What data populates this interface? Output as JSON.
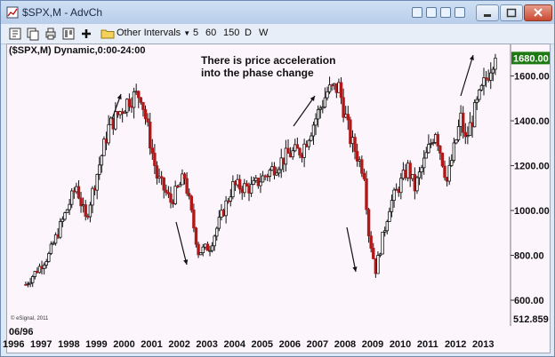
{
  "window": {
    "title": "$SPX,M - AdvCh"
  },
  "toolbar": {
    "interval_menu_label": "Other Intervals",
    "intervals": [
      "5",
      "60",
      "150",
      "D",
      "W"
    ]
  },
  "chart_data": {
    "type": "candlestick",
    "title": "($SPX,M) Dynamic,0:00-24:00",
    "annotation_lines": [
      "There is price acceleration",
      "into the phase change"
    ],
    "credit": "© eSignal, 2011",
    "date_badge": "06/96",
    "x_ticks": [
      "1996",
      "1997",
      "1998",
      "1999",
      "2000",
      "2001",
      "2002",
      "2003",
      "2004",
      "2005",
      "2006",
      "2007",
      "2008",
      "2009",
      "2010",
      "2011",
      "2012",
      "2013"
    ],
    "y_ticks": [
      {
        "label": "1600.00",
        "value": 1600
      },
      {
        "label": "1400.00",
        "value": 1400
      },
      {
        "label": "1200.00",
        "value": 1200
      },
      {
        "label": "1000.00",
        "value": 1000
      },
      {
        "label": "800.00",
        "value": 800
      },
      {
        "label": "600.00",
        "value": 600
      }
    ],
    "ylim": [
      505,
      1725
    ],
    "last_price": {
      "label": "1680.00",
      "value": 1680,
      "color": "#1e7a12"
    },
    "bottom_price": {
      "label": "512.859"
    },
    "colors": {
      "up": "#111111",
      "down": "#b31818",
      "bg": "#fcf5fb"
    },
    "monthly_closes": [
      {
        "date": "1996-06",
        "close": 670
      },
      {
        "date": "1997-04",
        "close": 800
      },
      {
        "date": "1998-04",
        "close": 1110
      },
      {
        "date": "1998-08",
        "close": 960
      },
      {
        "date": "1999-06",
        "close": 1370
      },
      {
        "date": "2000-03",
        "close": 1500
      },
      {
        "date": "2000-08",
        "close": 1520
      },
      {
        "date": "2001-03",
        "close": 1150
      },
      {
        "date": "2001-09",
        "close": 1040
      },
      {
        "date": "2002-03",
        "close": 1150
      },
      {
        "date": "2002-09",
        "close": 815
      },
      {
        "date": "2003-02",
        "close": 840
      },
      {
        "date": "2003-12",
        "close": 1110
      },
      {
        "date": "2004-08",
        "close": 1100
      },
      {
        "date": "2005-12",
        "close": 1250
      },
      {
        "date": "2006-06",
        "close": 1270
      },
      {
        "date": "2007-05",
        "close": 1530
      },
      {
        "date": "2007-10",
        "close": 1550
      },
      {
        "date": "2008-03",
        "close": 1320
      },
      {
        "date": "2008-09",
        "close": 1170
      },
      {
        "date": "2008-11",
        "close": 900
      },
      {
        "date": "2009-02",
        "close": 735
      },
      {
        "date": "2009-08",
        "close": 1020
      },
      {
        "date": "2010-04",
        "close": 1190
      },
      {
        "date": "2010-07",
        "close": 1100
      },
      {
        "date": "2011-04",
        "close": 1360
      },
      {
        "date": "2011-09",
        "close": 1130
      },
      {
        "date": "2012-03",
        "close": 1410
      },
      {
        "date": "2012-05",
        "close": 1310
      },
      {
        "date": "2012-09",
        "close": 1440
      },
      {
        "date": "2013-05",
        "close": 1680
      }
    ]
  }
}
